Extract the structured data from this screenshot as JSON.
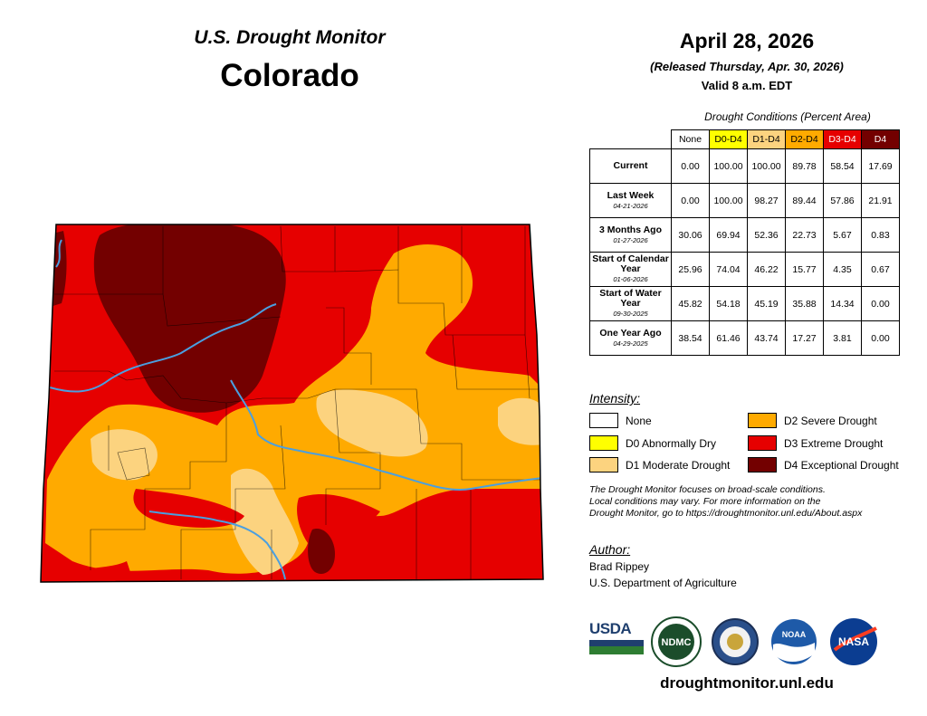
{
  "header": {
    "top_title": "U.S. Drought Monitor",
    "state": "Colorado",
    "date": "April 28, 2026",
    "released": "(Released Thursday, Apr. 30, 2026)",
    "valid": "Valid 8 a.m. EDT"
  },
  "table": {
    "caption": "Drought Conditions (Percent Area)",
    "columns": [
      "None",
      "D0-D4",
      "D1-D4",
      "D2-D4",
      "D3-D4",
      "D4"
    ],
    "rows": [
      {
        "label": "Current",
        "date": "",
        "values": [
          "0.00",
          "100.00",
          "100.00",
          "89.78",
          "58.54",
          "17.69"
        ]
      },
      {
        "label": "Last Week",
        "date": "04-21-2026",
        "values": [
          "0.00",
          "100.00",
          "98.27",
          "89.44",
          "57.86",
          "21.91"
        ]
      },
      {
        "label": "3 Months Ago",
        "date": "01-27-2026",
        "values": [
          "30.06",
          "69.94",
          "52.36",
          "22.73",
          "5.67",
          "0.83"
        ]
      },
      {
        "label": "Start of Calendar Year",
        "date": "01-06-2026",
        "values": [
          "25.96",
          "74.04",
          "46.22",
          "15.77",
          "4.35",
          "0.67"
        ]
      },
      {
        "label": "Start of Water Year",
        "date": "09-30-2025",
        "values": [
          "45.82",
          "54.18",
          "45.19",
          "35.88",
          "14.34",
          "0.00"
        ]
      },
      {
        "label": "One Year Ago",
        "date": "04-29-2025",
        "values": [
          "38.54",
          "61.46",
          "43.74",
          "17.27",
          "3.81",
          "0.00"
        ]
      }
    ]
  },
  "legend": {
    "heading": "Intensity:",
    "items": [
      {
        "label": "None",
        "color": "#ffffff"
      },
      {
        "label": "D0 Abnormally Dry",
        "color": "#ffff00"
      },
      {
        "label": "D1 Moderate Drought",
        "color": "#fcd37f"
      },
      {
        "label": "D2 Severe Drought",
        "color": "#ffaa00"
      },
      {
        "label": "D3 Extreme Drought",
        "color": "#e60000"
      },
      {
        "label": "D4 Exceptional Drought",
        "color": "#730000"
      }
    ]
  },
  "note": {
    "line1": "The Drought Monitor focuses on broad-scale conditions.",
    "line2": "Local conditions may vary. For more information on the",
    "line3": "Drought Monitor, go to https://droughtmonitor.unl.edu/About.aspx"
  },
  "author": {
    "heading": "Author:",
    "name": "Brad Rippey",
    "org": "U.S. Department of Agriculture"
  },
  "logos": {
    "usda": "USDA",
    "ndmc": "NDMC",
    "noaa": "NOAA",
    "nasa": "NASA"
  },
  "website": "droughtmonitor.unl.edu",
  "colors": {
    "none": "#ffffff",
    "d0": "#ffff00",
    "d1": "#fcd37f",
    "d2": "#ffaa00",
    "d3": "#e60000",
    "d4": "#730000",
    "river": "#4a9fe0"
  }
}
